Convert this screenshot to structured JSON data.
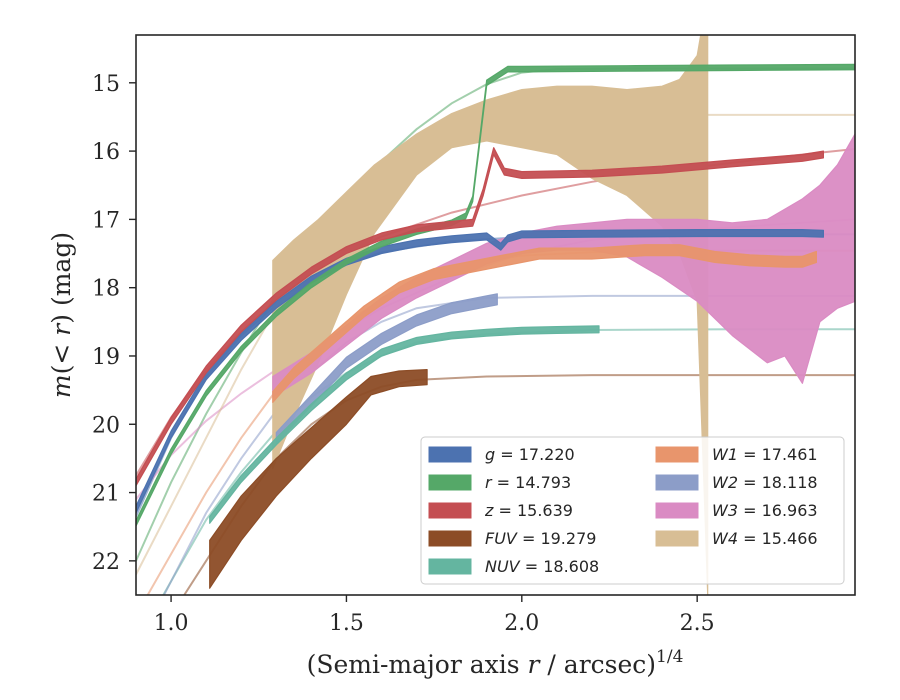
{
  "chart_data": {
    "type": "line",
    "title": "",
    "xlabel": "(Semi-major axis r / arcsec)^{1/4}",
    "xlabel_parts": {
      "main": "(Semi-major axis ",
      "var": "r",
      "rest": " / arcsec)",
      "sup": "1/4"
    },
    "ylabel": "m(<r) (mag)",
    "ylabel_parts": {
      "var": "m",
      "open": "(",
      "lt": "< ",
      "r": "r",
      "close": ") (mag)"
    },
    "xlim": [
      0.9,
      2.95
    ],
    "ylim": [
      22.5,
      14.3
    ],
    "y_inverted": true,
    "xticks": [
      1.0,
      1.5,
      2.0,
      2.5
    ],
    "xtick_labels": [
      "1.0",
      "1.5",
      "2.0",
      "2.5"
    ],
    "yticks": [
      15,
      16,
      17,
      18,
      19,
      20,
      21,
      22
    ],
    "ytick_labels": [
      "15",
      "16",
      "17",
      "18",
      "19",
      "20",
      "21",
      "22"
    ],
    "grid": false,
    "legend_position": "lower-right",
    "series": [
      {
        "name": "g",
        "label_var": "g",
        "label_value": "17.220",
        "color": "#4c72b0",
        "data": {
          "x": [
            0.9,
            1.0,
            1.1,
            1.2,
            1.3,
            1.4,
            1.5,
            1.6,
            1.7,
            1.8,
            1.9,
            1.94,
            1.96,
            2.0,
            2.2,
            2.5,
            2.8,
            2.86
          ],
          "y": [
            21.25,
            20.15,
            19.3,
            18.72,
            18.25,
            17.88,
            17.62,
            17.45,
            17.35,
            17.29,
            17.25,
            17.4,
            17.28,
            17.22,
            17.21,
            17.2,
            17.2,
            17.21
          ],
          "band": 0.05
        },
        "model": {
          "x": [
            0.9,
            1.0,
            1.1,
            1.2,
            1.3,
            1.4,
            1.5,
            1.6,
            1.8,
            2.0,
            2.3,
            2.6,
            2.95
          ],
          "y": [
            21.35,
            20.2,
            19.3,
            18.7,
            18.25,
            17.9,
            17.65,
            17.48,
            17.32,
            17.26,
            17.23,
            17.22,
            17.22
          ]
        }
      },
      {
        "name": "r",
        "label_var": "r",
        "label_value": "14.793",
        "color": "#55a868",
        "data": {
          "x": [
            0.9,
            1.0,
            1.1,
            1.2,
            1.3,
            1.4,
            1.5,
            1.6,
            1.7,
            1.8,
            1.84,
            1.86,
            1.9,
            1.96,
            2.0,
            2.3,
            2.6,
            2.95
          ],
          "y": [
            21.45,
            20.4,
            19.55,
            18.9,
            18.38,
            17.96,
            17.62,
            17.36,
            17.18,
            17.05,
            16.95,
            16.7,
            15.0,
            14.8,
            14.8,
            14.79,
            14.78,
            14.77
          ],
          "band": 0.04
        },
        "model": {
          "x": [
            0.9,
            1.0,
            1.1,
            1.2,
            1.3,
            1.4,
            1.5,
            1.6,
            1.7,
            1.8,
            1.9,
            2.0,
            2.1,
            2.3,
            2.6,
            2.95
          ],
          "y": [
            22.0,
            20.85,
            19.85,
            18.95,
            18.1,
            17.35,
            16.7,
            16.15,
            15.68,
            15.3,
            15.02,
            14.85,
            14.8,
            14.79,
            14.79,
            14.79
          ]
        }
      },
      {
        "name": "z",
        "label_var": "z",
        "label_value": "15.639",
        "color": "#c44e52",
        "data": {
          "x": [
            0.9,
            1.0,
            1.1,
            1.2,
            1.3,
            1.4,
            1.5,
            1.6,
            1.7,
            1.8,
            1.86,
            1.89,
            1.92,
            1.95,
            2.0,
            2.2,
            2.4,
            2.6,
            2.8,
            2.86
          ],
          "y": [
            20.85,
            19.95,
            19.2,
            18.6,
            18.13,
            17.75,
            17.45,
            17.25,
            17.13,
            17.08,
            17.05,
            16.6,
            16.0,
            16.3,
            16.35,
            16.33,
            16.27,
            16.18,
            16.1,
            16.05
          ],
          "band": 0.05
        },
        "model": {
          "x": [
            0.9,
            1.0,
            1.1,
            1.2,
            1.3,
            1.4,
            1.5,
            1.6,
            1.8,
            2.0,
            2.2,
            2.4,
            2.6,
            2.8,
            2.95
          ],
          "y": [
            20.75,
            19.9,
            19.2,
            18.65,
            18.2,
            17.82,
            17.5,
            17.25,
            16.9,
            16.65,
            16.45,
            16.3,
            16.17,
            16.05,
            15.97
          ]
        }
      },
      {
        "name": "FUV",
        "label_var": "FUV",
        "label_value": "19.279",
        "color": "#8c4c26",
        "data": {
          "x": [
            1.11,
            1.2,
            1.3,
            1.4,
            1.5,
            1.57,
            1.65,
            1.73
          ],
          "y": [
            22.0,
            21.35,
            20.75,
            20.25,
            19.8,
            19.42,
            19.33,
            19.3
          ],
          "y_upper": [
            21.7,
            21.05,
            20.5,
            20.05,
            19.6,
            19.3,
            19.22,
            19.2
          ],
          "y_lower": [
            22.4,
            21.7,
            21.05,
            20.5,
            20.0,
            19.57,
            19.45,
            19.42
          ]
        },
        "model": {
          "x": [
            0.9,
            1.0,
            1.1,
            1.2,
            1.3,
            1.4,
            1.5,
            1.6,
            1.7,
            1.9,
            2.2,
            2.6,
            2.95
          ],
          "y": [
            23.5,
            22.8,
            22.0,
            21.2,
            20.5,
            20.0,
            19.65,
            19.45,
            19.35,
            19.3,
            19.28,
            19.28,
            19.28
          ]
        }
      },
      {
        "name": "NUV",
        "label_var": "NUV",
        "label_value": "18.608",
        "color": "#64b5a0",
        "data": {
          "x": [
            1.11,
            1.2,
            1.3,
            1.4,
            1.5,
            1.6,
            1.7,
            1.8,
            1.9,
            2.0,
            2.1,
            2.22
          ],
          "y": [
            21.4,
            20.8,
            20.25,
            19.75,
            19.3,
            18.95,
            18.78,
            18.7,
            18.66,
            18.63,
            18.62,
            18.61
          ],
          "band": 0.05
        },
        "model": {
          "x": [
            0.9,
            1.0,
            1.1,
            1.2,
            1.3,
            1.4,
            1.5,
            1.6,
            1.7,
            1.9,
            2.2,
            2.6,
            2.95
          ],
          "y": [
            23.2,
            22.3,
            21.4,
            20.7,
            20.1,
            19.6,
            19.25,
            19.0,
            18.8,
            18.68,
            18.62,
            18.61,
            18.61
          ]
        }
      },
      {
        "name": "W1",
        "label_var": "W1",
        "label_value": "17.461",
        "color": "#e8956c",
        "data": {
          "x": [
            1.29,
            1.35,
            1.45,
            1.55,
            1.65,
            1.75,
            1.85,
            1.95,
            2.05,
            2.2,
            2.35,
            2.45,
            2.55,
            2.65,
            2.75,
            2.8,
            2.84
          ],
          "y": [
            19.6,
            19.25,
            18.8,
            18.35,
            18.0,
            17.8,
            17.7,
            17.6,
            17.5,
            17.5,
            17.45,
            17.45,
            17.55,
            17.6,
            17.62,
            17.62,
            17.55
          ],
          "band": 0.08
        },
        "model": {
          "x": [
            0.9,
            1.0,
            1.1,
            1.2,
            1.3,
            1.4,
            1.5,
            1.6,
            1.7,
            1.8,
            1.9,
            2.0,
            2.2,
            2.5,
            2.95
          ],
          "y": [
            22.8,
            21.9,
            21.0,
            20.2,
            19.5,
            18.95,
            18.5,
            18.18,
            17.92,
            17.72,
            17.6,
            17.53,
            17.48,
            17.46,
            17.46
          ]
        }
      },
      {
        "name": "W2",
        "label_var": "W2",
        "label_value": "18.118",
        "color": "#8c9dc8",
        "data": {
          "x": [
            1.3,
            1.4,
            1.5,
            1.6,
            1.7,
            1.8,
            1.9,
            1.93
          ],
          "y": [
            20.2,
            19.65,
            19.1,
            18.75,
            18.48,
            18.3,
            18.2,
            18.17
          ],
          "band": 0.08
        },
        "model": {
          "x": [
            0.9,
            1.0,
            1.1,
            1.2,
            1.3,
            1.4,
            1.5,
            1.6,
            1.7,
            1.9,
            2.2,
            2.6,
            2.95
          ],
          "y": [
            23.3,
            22.3,
            21.3,
            20.5,
            19.8,
            19.25,
            18.8,
            18.5,
            18.3,
            18.15,
            18.12,
            18.12,
            18.12
          ]
        }
      },
      {
        "name": "W3",
        "label_var": "W3",
        "label_value": "16.963",
        "color": "#da8bc3",
        "data": {
          "x": [
            1.29,
            1.4,
            1.5,
            1.6,
            1.7,
            1.8,
            1.9,
            2.0,
            2.1,
            2.2,
            2.3,
            2.4,
            2.5,
            2.6,
            2.7,
            2.75,
            2.8,
            2.85,
            2.9,
            2.95
          ],
          "y_upper": [
            19.3,
            18.95,
            18.55,
            18.15,
            17.85,
            17.6,
            17.35,
            17.2,
            17.1,
            17.05,
            17.0,
            17.0,
            17.0,
            17.05,
            17.0,
            16.85,
            16.7,
            16.5,
            16.2,
            15.75
          ],
          "y_lower": [
            19.6,
            19.25,
            18.85,
            18.45,
            18.15,
            17.9,
            17.65,
            17.5,
            17.45,
            17.45,
            17.55,
            17.85,
            18.2,
            18.7,
            19.1,
            19.0,
            19.4,
            18.5,
            18.3,
            18.2
          ]
        },
        "model": {
          "x": [
            0.9,
            1.0,
            1.1,
            1.2,
            1.3,
            1.4,
            1.5,
            1.6,
            1.8,
            2.0,
            2.2,
            2.5,
            2.8,
            2.95
          ],
          "y": [
            21.1,
            20.45,
            19.95,
            19.55,
            19.2,
            18.9,
            18.6,
            18.3,
            17.85,
            17.5,
            17.3,
            17.15,
            17.05,
            17.0
          ]
        }
      },
      {
        "name": "W4",
        "label_var": "W4",
        "label_value": "15.466",
        "color": "#d8be95",
        "data": {
          "x": [
            1.29,
            1.35,
            1.42,
            1.5,
            1.58,
            1.7,
            1.8,
            1.9,
            2.0,
            2.1,
            2.2,
            2.3,
            2.4,
            2.45,
            2.5,
            2.52,
            2.53
          ],
          "y_upper": [
            17.6,
            17.3,
            17.0,
            16.6,
            16.2,
            15.75,
            15.45,
            15.25,
            15.1,
            15.05,
            15.05,
            15.1,
            15.05,
            14.95,
            14.6,
            14.0,
            14.3
          ],
          "y_lower": [
            20.65,
            19.9,
            19.1,
            18.1,
            17.2,
            16.35,
            15.95,
            15.85,
            15.95,
            16.05,
            16.4,
            16.65,
            17.1,
            17.5,
            18.2,
            21.0,
            22.5
          ]
        },
        "model": {
          "x": [
            0.9,
            1.0,
            1.1,
            1.2,
            1.3,
            1.4,
            1.5,
            1.6,
            1.7,
            1.8,
            1.9,
            2.0,
            2.2,
            2.5,
            2.95
          ],
          "y": [
            22.2,
            21.2,
            20.2,
            19.2,
            18.3,
            17.5,
            16.8,
            16.3,
            15.95,
            15.72,
            15.58,
            15.52,
            15.48,
            15.47,
            15.47
          ]
        }
      }
    ]
  }
}
